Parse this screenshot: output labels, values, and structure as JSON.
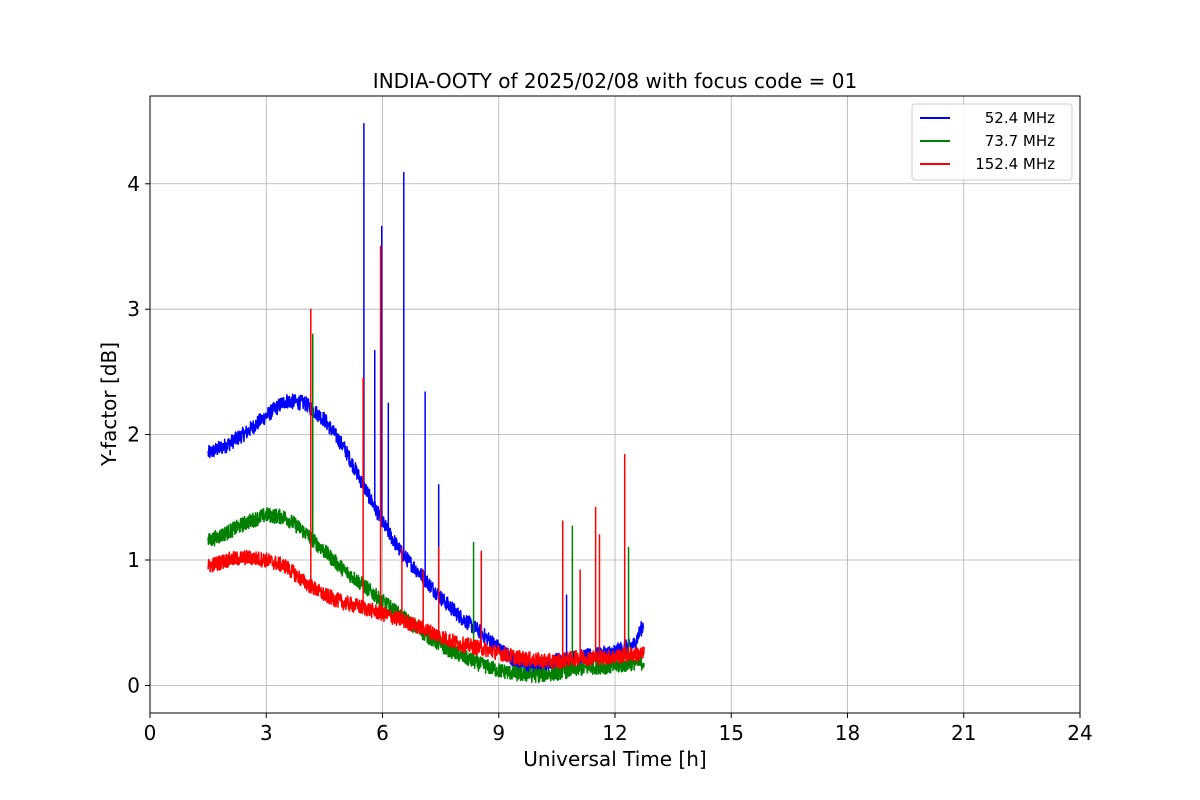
{
  "chart_data": {
    "type": "line",
    "title": "INDIA-OOTY of 2025/02/08 with focus code = 01",
    "xlabel": "Universal Time [h]",
    "ylabel": "Y-factor [dB]",
    "xlim": [
      0,
      24
    ],
    "ylim": [
      -0.22,
      4.7
    ],
    "xticks": [
      0,
      3,
      6,
      9,
      12,
      15,
      18,
      21,
      24
    ],
    "xtick_labels": [
      "0",
      "3",
      "6",
      "9",
      "12",
      "15",
      "18",
      "21",
      "24"
    ],
    "yticks": [
      0,
      1,
      2,
      3,
      4
    ],
    "ytick_labels": [
      "0",
      "1",
      "2",
      "3",
      "4"
    ],
    "grid": true,
    "legend_position": "top-right",
    "series": [
      {
        "name": "52.4 MHz",
        "color": "#0000ff",
        "x": [
          1.5,
          2.0,
          2.5,
          3.0,
          3.5,
          4.0,
          4.5,
          5.0,
          5.5,
          6.0,
          6.5,
          7.0,
          7.5,
          8.0,
          8.5,
          9.0,
          9.5,
          10.0,
          10.5,
          11.0,
          11.5,
          12.0,
          12.5,
          12.75
        ],
        "values": [
          1.85,
          1.92,
          2.02,
          2.15,
          2.27,
          2.25,
          2.12,
          1.9,
          1.6,
          1.3,
          1.05,
          0.88,
          0.7,
          0.55,
          0.43,
          0.3,
          0.17,
          0.14,
          0.2,
          0.22,
          0.24,
          0.27,
          0.33,
          0.5
        ],
        "noise": 0.06,
        "spikes": [
          [
            5.52,
            4.48
          ],
          [
            5.8,
            2.67
          ],
          [
            5.98,
            3.66
          ],
          [
            6.15,
            2.25
          ],
          [
            6.55,
            4.09
          ],
          [
            7.1,
            2.34
          ],
          [
            7.45,
            1.6
          ],
          [
            10.75,
            0.72
          ]
        ]
      },
      {
        "name": "73.7 MHz",
        "color": "#008000",
        "x": [
          1.5,
          2.0,
          2.5,
          3.0,
          3.5,
          4.0,
          4.5,
          5.0,
          5.5,
          6.0,
          6.5,
          7.0,
          7.5,
          8.0,
          8.5,
          9.0,
          9.5,
          10.0,
          10.5,
          11.0,
          11.5,
          12.0,
          12.5,
          12.75
        ],
        "values": [
          1.15,
          1.22,
          1.3,
          1.36,
          1.34,
          1.22,
          1.07,
          0.92,
          0.8,
          0.67,
          0.55,
          0.43,
          0.32,
          0.24,
          0.17,
          0.12,
          0.09,
          0.08,
          0.1,
          0.13,
          0.15,
          0.15,
          0.18,
          0.18
        ],
        "noise": 0.06,
        "spikes": [
          [
            4.2,
            2.8
          ],
          [
            8.35,
            1.14
          ],
          [
            10.9,
            1.27
          ],
          [
            12.35,
            1.1
          ]
        ]
      },
      {
        "name": "152.4 MHz",
        "color": "#ff0000",
        "x": [
          1.5,
          2.0,
          2.5,
          3.0,
          3.5,
          4.0,
          4.5,
          5.0,
          5.5,
          6.0,
          6.5,
          7.0,
          7.5,
          8.0,
          8.5,
          9.0,
          9.5,
          10.0,
          10.5,
          11.0,
          11.5,
          12.0,
          12.5,
          12.75
        ],
        "values": [
          0.95,
          1.0,
          1.02,
          1.0,
          0.95,
          0.82,
          0.72,
          0.66,
          0.62,
          0.57,
          0.52,
          0.46,
          0.39,
          0.33,
          0.3,
          0.26,
          0.22,
          0.2,
          0.19,
          0.22,
          0.22,
          0.23,
          0.25,
          0.25
        ],
        "noise": 0.06,
        "spikes": [
          [
            4.15,
            3.0
          ],
          [
            5.5,
            2.45
          ],
          [
            5.95,
            3.5
          ],
          [
            6.5,
            1.1
          ],
          [
            7.05,
            0.92
          ],
          [
            7.45,
            1.1
          ],
          [
            8.55,
            1.07
          ],
          [
            10.65,
            1.31
          ],
          [
            11.1,
            0.92
          ],
          [
            11.5,
            1.42
          ],
          [
            11.6,
            1.2
          ],
          [
            12.25,
            1.84
          ]
        ]
      }
    ]
  }
}
